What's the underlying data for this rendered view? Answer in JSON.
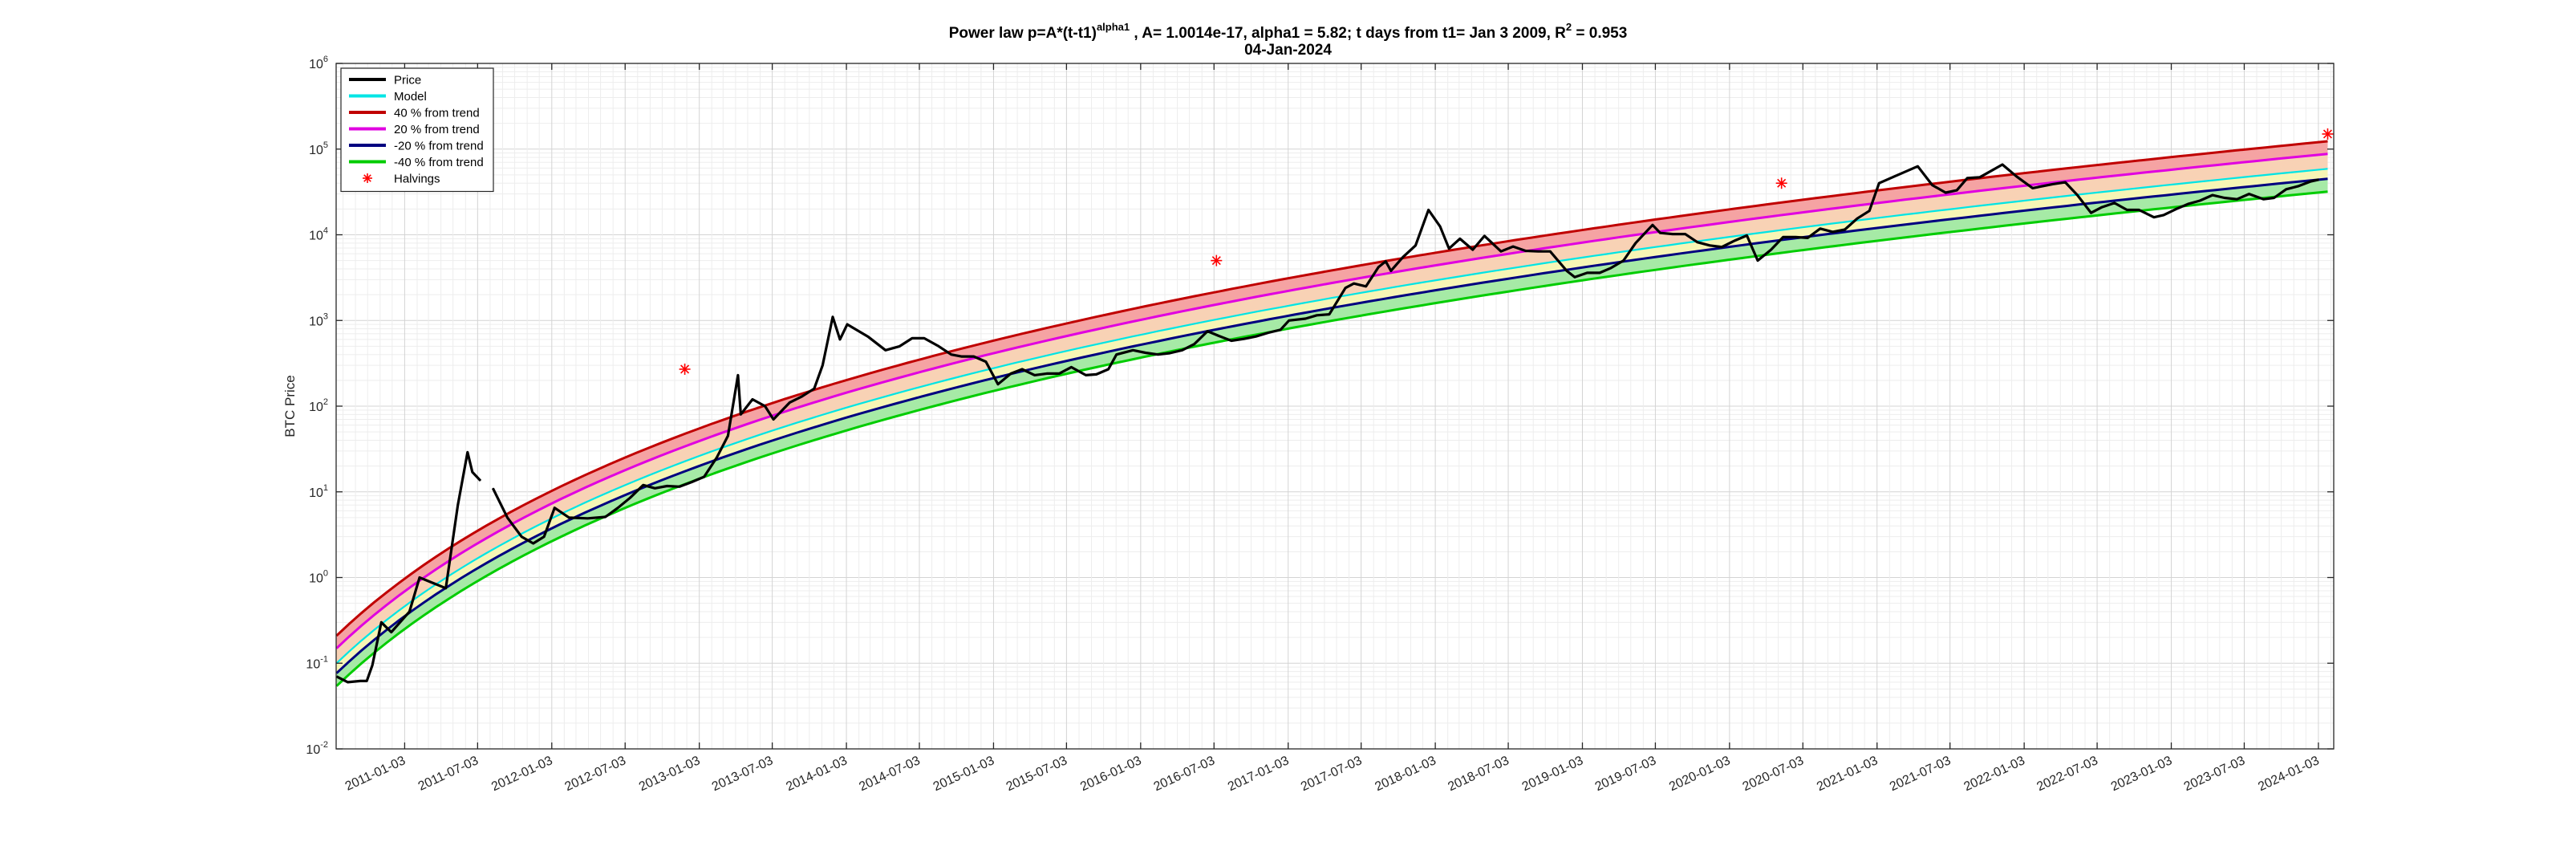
{
  "chart_data": {
    "type": "line",
    "title": {
      "pre": "Power law p=A*(t-t1)",
      "sup": "alpha1",
      "mid": " , A= 1.0014e-17, alpha1 = 5.82; t days from t1= Jan 3 2009, R",
      "sup2": "2",
      "post": " = 0.953"
    },
    "subtitle": "04-Jan-2024",
    "ylabel": "BTC Price",
    "xlabel": "",
    "yscale": "log",
    "ylim": [
      0.01,
      1000000
    ],
    "xlim": [
      "2010-07-17",
      "2024-02-10"
    ],
    "grid": true,
    "legend_position": "top-left",
    "ytick_labels": [
      {
        "base": "10",
        "exp": "-2",
        "value": 0.01
      },
      {
        "base": "10",
        "exp": "-1",
        "value": 0.1
      },
      {
        "base": "10",
        "exp": "0",
        "value": 1
      },
      {
        "base": "10",
        "exp": "1",
        "value": 10
      },
      {
        "base": "10",
        "exp": "2",
        "value": 100
      },
      {
        "base": "10",
        "exp": "3",
        "value": 1000
      },
      {
        "base": "10",
        "exp": "4",
        "value": 10000
      },
      {
        "base": "10",
        "exp": "5",
        "value": 100000
      },
      {
        "base": "10",
        "exp": "6",
        "value": 1000000
      }
    ],
    "xtick_labels": [
      "2011-01-03",
      "2011-07-03",
      "2012-01-03",
      "2012-07-03",
      "2013-01-03",
      "2013-07-03",
      "2014-01-03",
      "2014-07-03",
      "2015-01-03",
      "2015-07-03",
      "2016-01-03",
      "2016-07-03",
      "2017-01-03",
      "2017-07-03",
      "2018-01-03",
      "2018-07-03",
      "2019-01-03",
      "2019-07-03",
      "2020-01-03",
      "2020-07-03",
      "2021-01-03",
      "2021-07-03",
      "2022-01-03",
      "2022-07-03",
      "2023-01-03",
      "2023-07-03",
      "2024-01-03"
    ],
    "model": {
      "A": 1.0014e-17,
      "alpha1": 5.82,
      "t1": "2009-01-03"
    },
    "series": [
      {
        "name": "Price",
        "color": "#000000",
        "x": [
          "2010-07-18",
          "2010-08-15",
          "2010-09-15",
          "2010-10-01",
          "2010-10-15",
          "2010-11-06",
          "2010-12-01",
          "2011-01-15",
          "2011-02-09",
          "2011-03-15",
          "2011-04-15",
          "2011-05-15",
          "2011-06-08",
          "2011-06-20",
          "2011-07-10",
          "2011-08-10",
          "2011-09-15",
          "2011-10-20",
          "2011-11-18",
          "2011-12-15",
          "2012-01-10",
          "2012-02-15",
          "2012-04-01",
          "2012-05-15",
          "2012-06-15",
          "2012-07-15",
          "2012-08-17",
          "2012-09-15",
          "2012-10-15",
          "2012-11-15",
          "2012-12-15",
          "2013-01-15",
          "2013-02-15",
          "2013-03-15",
          "2013-04-09",
          "2013-04-16",
          "2013-05-15",
          "2013-06-15",
          "2013-07-06",
          "2013-08-15",
          "2013-09-15",
          "2013-10-15",
          "2013-11-05",
          "2013-11-30",
          "2013-12-18",
          "2014-01-05",
          "2014-02-25",
          "2014-04-10",
          "2014-05-15",
          "2014-06-15",
          "2014-07-15",
          "2014-08-20",
          "2014-09-20",
          "2014-10-15",
          "2014-11-15",
          "2014-12-15",
          "2015-01-14",
          "2015-02-15",
          "2015-03-15",
          "2015-04-15",
          "2015-05-15",
          "2015-06-15",
          "2015-07-15",
          "2015-08-20",
          "2015-09-15",
          "2015-10-15",
          "2015-11-04",
          "2015-12-15",
          "2016-01-15",
          "2016-02-15",
          "2016-03-15",
          "2016-04-15",
          "2016-05-15",
          "2016-06-17",
          "2016-07-15",
          "2016-08-15",
          "2016-09-15",
          "2016-10-15",
          "2016-11-15",
          "2016-12-15",
          "2017-01-05",
          "2017-02-15",
          "2017-03-15",
          "2017-04-15",
          "2017-05-25",
          "2017-06-15",
          "2017-07-15",
          "2017-08-15",
          "2017-09-02",
          "2017-09-15",
          "2017-10-15",
          "2017-11-15",
          "2017-12-17",
          "2018-01-15",
          "2018-02-06",
          "2018-03-05",
          "2018-04-06",
          "2018-05-05",
          "2018-06-15",
          "2018-07-15",
          "2018-08-15",
          "2018-09-15",
          "2018-10-15",
          "2018-11-25",
          "2018-12-15",
          "2019-01-15",
          "2019-02-15",
          "2019-03-15",
          "2019-04-15",
          "2019-05-15",
          "2019-06-26",
          "2019-07-15",
          "2019-08-15",
          "2019-09-15",
          "2019-10-15",
          "2019-11-15",
          "2019-12-15",
          "2020-01-15",
          "2020-02-15",
          "2020-03-13",
          "2020-04-15",
          "2020-05-15",
          "2020-06-15",
          "2020-07-15",
          "2020-08-15",
          "2020-09-15",
          "2020-10-15",
          "2020-11-15",
          "2020-12-15",
          "2021-01-08",
          "2021-02-15",
          "2021-04-14",
          "2021-05-20",
          "2021-06-22",
          "2021-07-20",
          "2021-08-15",
          "2021-09-15",
          "2021-11-10",
          "2021-12-15",
          "2022-01-24",
          "2022-03-15",
          "2022-04-15",
          "2022-05-15",
          "2022-06-18",
          "2022-07-15",
          "2022-08-15",
          "2022-09-15",
          "2022-10-15",
          "2022-11-21",
          "2022-12-15",
          "2023-01-15",
          "2023-02-15",
          "2023-03-15",
          "2023-04-15",
          "2023-05-15",
          "2023-06-15",
          "2023-07-15",
          "2023-08-20",
          "2023-09-15",
          "2023-10-15",
          "2023-11-15",
          "2023-12-15",
          "2024-01-04"
        ],
        "y": [
          0.07,
          0.06,
          0.062,
          0.062,
          0.095,
          0.3,
          0.23,
          0.4,
          1.0,
          0.86,
          0.75,
          7,
          29,
          17,
          13.5,
          11,
          5,
          3,
          2.5,
          3,
          6.5,
          5,
          4.9,
          5.1,
          6.5,
          8.5,
          12,
          11,
          11.7,
          11.5,
          13,
          15,
          25,
          45,
          230,
          80,
          120,
          100,
          70,
          110,
          130,
          160,
          300,
          1100,
          600,
          900,
          650,
          450,
          500,
          620,
          620,
          500,
          400,
          380,
          380,
          330,
          180,
          240,
          270,
          230,
          240,
          240,
          285,
          230,
          235,
          270,
          400,
          450,
          420,
          400,
          415,
          450,
          530,
          750,
          660,
          580,
          610,
          650,
          720,
          780,
          1000,
          1050,
          1150,
          1180,
          2400,
          2700,
          2500,
          4200,
          4900,
          3800,
          5500,
          7500,
          19500,
          12500,
          6900,
          9000,
          6700,
          9700,
          6400,
          7300,
          6500,
          6400,
          6400,
          3800,
          3200,
          3600,
          3600,
          4100,
          5000,
          8000,
          13000,
          10500,
          10200,
          10200,
          8200,
          7500,
          7200,
          8500,
          9800,
          5000,
          6700,
          9400,
          9400,
          9200,
          11800,
          10800,
          11500,
          15500,
          19000,
          40000,
          48000,
          63000,
          38000,
          31000,
          33000,
          46000,
          47000,
          66000,
          48000,
          35000,
          39000,
          41000,
          29000,
          18000,
          21000,
          23500,
          19500,
          19500,
          16000,
          17000,
          20000,
          23000,
          25000,
          29000,
          27000,
          26000,
          30000,
          26000,
          27000,
          34000,
          37000,
          42000,
          44000
        ]
      },
      {
        "name": "Model",
        "color": "#00e5e5",
        "dev": 0
      },
      {
        "name": "40 % from trend",
        "color": "#c00000",
        "dev": 0.4
      },
      {
        "name": "20 % from trend",
        "color": "#e000e0",
        "dev": 0.2
      },
      {
        "name": "-20 % from trend",
        "color": "#000080",
        "dev": -0.2
      },
      {
        "name": "-40 % from trend",
        "color": "#00cc00",
        "dev": -0.4
      },
      {
        "name": "Halvings",
        "color": "#ff0000",
        "marker": "*",
        "x": [
          "2012-11-28",
          "2016-07-09",
          "2020-05-11",
          "2024-01-26"
        ],
        "y": [
          270,
          5000,
          40000,
          150000
        ]
      }
    ],
    "bands": [
      {
        "from": 0.2,
        "to": 0.4,
        "fill": "#f5a3a3"
      },
      {
        "from": 0,
        "to": 0.2,
        "fill": "#f8d2b5"
      },
      {
        "from": -0.2,
        "to": 0,
        "fill": "#f7f5b5"
      },
      {
        "from": -0.4,
        "to": -0.2,
        "fill": "#a6eaa6"
      }
    ],
    "band_value_rule": "upper = model*(1+dev)^2.2; lower = model*(1+dev)^1.2"
  }
}
